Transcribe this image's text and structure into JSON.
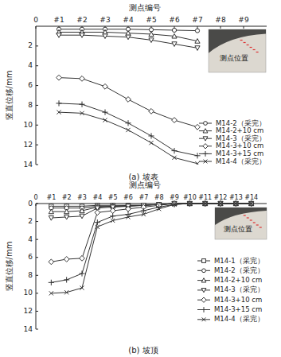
{
  "chart_data": [
    {
      "type": "line",
      "title": "(a) 坡表",
      "x_label": "测点编号",
      "y_label": "竖直位移/mm",
      "inset_label": "测点位置",
      "x": [
        1,
        2,
        3,
        4,
        5,
        6,
        7
      ],
      "xlim": [
        0,
        10
      ],
      "xticks": [
        {
          "value": 0,
          "label": "0"
        },
        {
          "value": 1,
          "label": "#1"
        },
        {
          "value": 2,
          "label": "#2"
        },
        {
          "value": 3,
          "label": "#3"
        },
        {
          "value": 4,
          "label": "#4"
        },
        {
          "value": 5,
          "label": "#5"
        },
        {
          "value": 6,
          "label": "#6"
        },
        {
          "value": 7,
          "label": "#7"
        },
        {
          "value": 8,
          "label": "#8"
        },
        {
          "value": 9,
          "label": "#9"
        }
      ],
      "ylim": [
        0,
        14
      ],
      "yticks": [
        2,
        4,
        6,
        8,
        10,
        12,
        14
      ],
      "legend": "lower right",
      "series": [
        {
          "name": "M14-2（采完）",
          "color": "#333333",
          "marker": "circle",
          "line_style": "solid",
          "values": [
            0.3,
            0.3,
            0.3,
            0.3,
            0.35,
            0.4,
            0.45
          ]
        },
        {
          "name": "M14-2+10 cm",
          "color": "#333333",
          "marker": "triangle",
          "line_style": "solid",
          "values": [
            0.6,
            0.6,
            0.6,
            0.7,
            0.8,
            1.0,
            1.5
          ]
        },
        {
          "name": "M14-3（采完）",
          "color": "#333333",
          "marker": "triangle-down",
          "line_style": "solid",
          "values": [
            0.9,
            0.9,
            1.0,
            1.1,
            1.4,
            1.8,
            2.2
          ]
        },
        {
          "name": "M14-3+10 cm",
          "color": "#333333",
          "marker": "diamond",
          "line_style": "solid",
          "values": [
            5.2,
            5.3,
            6.1,
            7.4,
            8.6,
            9.5,
            10.2
          ]
        },
        {
          "name": "M14-3+15 cm",
          "color": "#333333",
          "marker": "plus",
          "line_style": "solid",
          "values": [
            7.8,
            7.9,
            8.7,
            9.8,
            11.1,
            12.6,
            13.1
          ]
        },
        {
          "name": "M14-4（采完）",
          "color": "#333333",
          "marker": "x",
          "line_style": "solid",
          "values": [
            8.7,
            8.8,
            9.5,
            10.5,
            11.8,
            13.3,
            13.9
          ]
        }
      ]
    },
    {
      "type": "line",
      "title": "(b) 坡顶",
      "x_label": "测点编号",
      "y_label": "竖直位移/mm",
      "inset_label": "测点位置",
      "x": [
        1,
        2,
        3,
        4,
        5,
        6,
        7,
        8,
        9,
        10,
        11,
        12,
        13,
        14
      ],
      "xlim": [
        0,
        15
      ],
      "xticks": [
        {
          "value": 0,
          "label": "0"
        },
        {
          "value": 1,
          "label": "#1"
        },
        {
          "value": 2,
          "label": "#2"
        },
        {
          "value": 3,
          "label": "#3"
        },
        {
          "value": 4,
          "label": "#4"
        },
        {
          "value": 5,
          "label": "#5"
        },
        {
          "value": 6,
          "label": "#6"
        },
        {
          "value": 7,
          "label": "#7"
        },
        {
          "value": 8,
          "label": "#8"
        },
        {
          "value": 9,
          "label": "#9"
        },
        {
          "value": 10,
          "label": "#10"
        },
        {
          "value": 11,
          "label": "#11"
        },
        {
          "value": 12,
          "label": "#12"
        },
        {
          "value": 13,
          "label": "#13"
        },
        {
          "value": 14,
          "label": "#14"
        }
      ],
      "ylim": [
        0,
        14
      ],
      "yticks": [
        0,
        2,
        4,
        6,
        8,
        10,
        12,
        14
      ],
      "legend": "lower right",
      "series": [
        {
          "name": "M14-1（采完）",
          "color": "#333333",
          "marker": "square",
          "line_style": "solid",
          "values": [
            0.3,
            0.3,
            0.3,
            0.2,
            0.2,
            0.2,
            0.2,
            0.1,
            0,
            0,
            0,
            0,
            0,
            0
          ]
        },
        {
          "name": "M14-2（采完）",
          "color": "#333333",
          "marker": "circle",
          "line_style": "solid",
          "values": [
            0.5,
            0.5,
            0.5,
            0.3,
            0.3,
            0.2,
            0.2,
            0.1,
            0,
            0,
            0,
            0,
            0,
            0
          ]
        },
        {
          "name": "M14-2+10 cm",
          "color": "#333333",
          "marker": "triangle",
          "line_style": "solid",
          "values": [
            0.9,
            0.9,
            0.8,
            0.4,
            0.3,
            0.3,
            0.2,
            0.1,
            0,
            0,
            0,
            0,
            0,
            0
          ]
        },
        {
          "name": "M14-3（采完）",
          "color": "#333333",
          "marker": "triangle-down",
          "line_style": "solid",
          "values": [
            1.6,
            1.5,
            1.4,
            0.5,
            0.4,
            0.3,
            0.2,
            0.1,
            0,
            0,
            0,
            0,
            0,
            0
          ]
        },
        {
          "name": "M14-3+10 cm",
          "color": "#333333",
          "marker": "diamond",
          "line_style": "solid",
          "values": [
            6.5,
            6.2,
            6.1,
            1.0,
            0.8,
            0.6,
            0.4,
            0.2,
            0,
            0,
            0,
            0,
            0,
            0
          ]
        },
        {
          "name": "M14-3+15 cm",
          "color": "#333333",
          "marker": "plus",
          "line_style": "solid",
          "values": [
            8.8,
            8.5,
            7.8,
            2.1,
            1.4,
            1.2,
            0.8,
            0.4,
            0.1,
            0,
            0,
            0,
            0,
            0
          ]
        },
        {
          "name": "M14-4（采完）",
          "color": "#333333",
          "marker": "x",
          "line_style": "solid",
          "values": [
            10.0,
            9.9,
            9.4,
            2.6,
            1.9,
            1.5,
            1.2,
            0.6,
            0.1,
            0,
            0,
            0,
            0,
            0
          ]
        }
      ]
    }
  ]
}
